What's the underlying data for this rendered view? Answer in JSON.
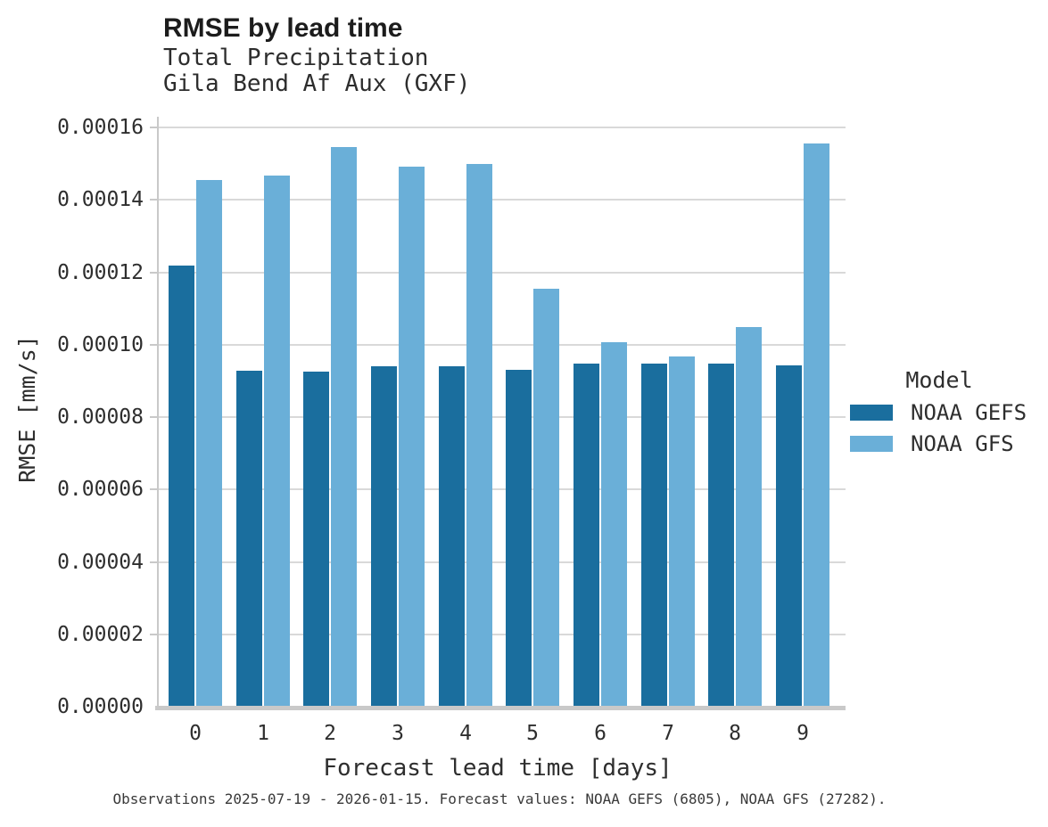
{
  "chart_data": {
    "type": "bar",
    "title": "RMSE by lead time",
    "subtitle": [
      "Total Precipitation",
      "Gila Bend Af Aux (GXF)"
    ],
    "xlabel": "Forecast lead time [days]",
    "ylabel": "RMSE [mm/s]",
    "categories": [
      "0",
      "1",
      "2",
      "3",
      "4",
      "5",
      "6",
      "7",
      "8",
      "9"
    ],
    "series": [
      {
        "name": "NOAA GEFS",
        "color": "#1a6e9e",
        "values": [
          0.0001217,
          9.26e-05,
          9.24e-05,
          9.37e-05,
          9.39e-05,
          9.29e-05,
          9.46e-05,
          9.44e-05,
          9.46e-05,
          9.41e-05
        ]
      },
      {
        "name": "NOAA GFS",
        "color": "#6aafd8",
        "values": [
          0.0001452,
          0.0001464,
          0.0001543,
          0.0001488,
          0.0001497,
          0.0001153,
          0.0001005,
          9.64e-05,
          0.0001047,
          0.0001553
        ]
      }
    ],
    "ylim": [
      0,
      0.000163
    ],
    "ytick_step": 2e-05,
    "ytick_labels": [
      "0.00000",
      "0.00002",
      "0.00004",
      "0.00006",
      "0.00008",
      "0.00010",
      "0.00012",
      "0.00014",
      "0.00016"
    ],
    "grid": "horizontal",
    "legend": {
      "title": "Model",
      "position": "right"
    },
    "colors": {
      "gridline": "#d9d9d9",
      "axis": "#c9c9c9",
      "background": "#ffffff"
    }
  },
  "footer": {
    "text": "Observations 2025-07-19 - 2026-01-15. Forecast values: NOAA GEFS (6805), NOAA GFS (27282)."
  }
}
